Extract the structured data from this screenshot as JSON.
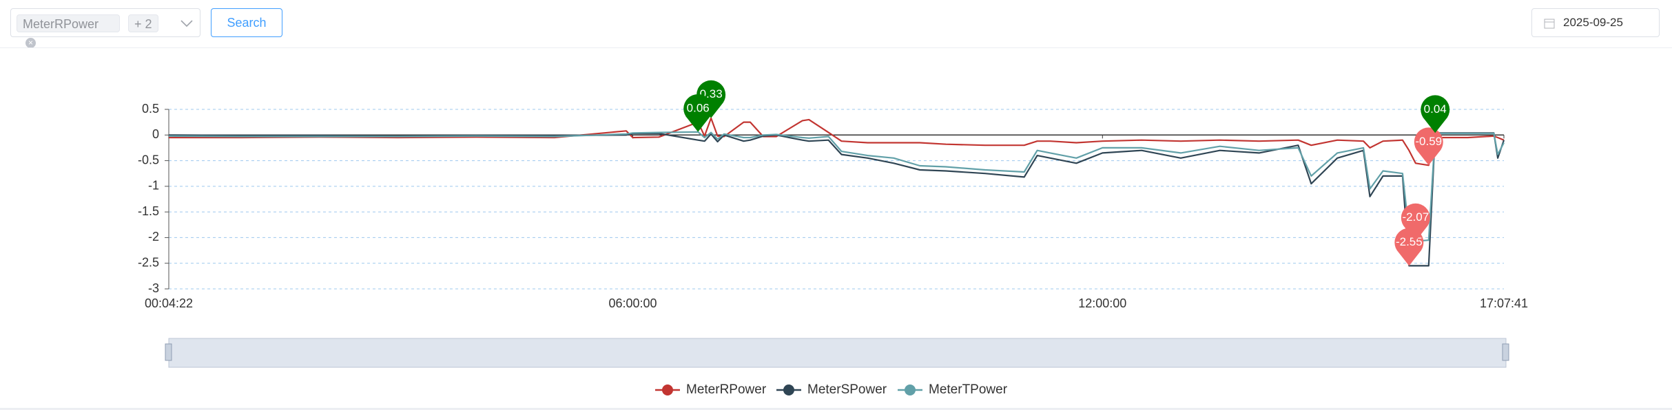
{
  "toolbar": {
    "select_tag": "MeterRPower",
    "more": "+ 2",
    "button": "Search",
    "date": "2025-09-25"
  },
  "chart_data": {
    "type": "line",
    "x": [
      "00:04:22",
      "01:00:00",
      "02:00:00",
      "03:00:00",
      "04:00:00",
      "05:00:00",
      "05:55:00",
      "06:00:00",
      "06:20:00",
      "06:50:00",
      "06:55:00",
      "07:00:00",
      "07:05:00",
      "07:10:00",
      "07:25:00",
      "07:30:00",
      "07:40:00",
      "07:50:00",
      "08:10:00",
      "08:15:00",
      "08:30:00",
      "08:40:00",
      "09:00:00",
      "09:20:00",
      "09:40:00",
      "10:00:00",
      "10:30:00",
      "11:00:00",
      "11:10:00",
      "11:20:00",
      "11:40:00",
      "12:00:00",
      "12:30:00",
      "13:00:00",
      "13:30:00",
      "14:00:00",
      "14:30:00",
      "14:40:00",
      "15:00:00",
      "15:20:00",
      "15:25:00",
      "15:35:00",
      "15:50:00",
      "15:55:00",
      "16:00:00",
      "16:10:00",
      "16:15:00",
      "16:40:00",
      "17:00:00",
      "17:03:00",
      "17:07:41"
    ],
    "series": [
      {
        "name": "MeterRPower",
        "color": "#c23531",
        "values": [
          -0.05,
          -0.05,
          -0.04,
          -0.05,
          -0.04,
          -0.05,
          0.08,
          -0.05,
          -0.04,
          0.25,
          -0.02,
          0.33,
          -0.02,
          -0.03,
          0.25,
          0.25,
          -0.03,
          -0.03,
          0.28,
          0.3,
          0.05,
          -0.12,
          -0.15,
          -0.15,
          -0.15,
          -0.18,
          -0.2,
          -0.2,
          -0.12,
          -0.12,
          -0.15,
          -0.12,
          -0.1,
          -0.12,
          -0.1,
          -0.12,
          -0.1,
          -0.2,
          -0.1,
          -0.12,
          -0.25,
          -0.12,
          -0.1,
          -0.3,
          -0.55,
          -0.59,
          -0.05,
          -0.05,
          -0.02,
          -0.05,
          -0.1
        ]
      },
      {
        "name": "MeterSPower",
        "color": "#2f4554",
        "values": [
          0,
          -0.01,
          -0.01,
          -0.02,
          -0.01,
          -0.01,
          0,
          0.03,
          0.03,
          -0.1,
          -0.12,
          0.02,
          -0.13,
          0,
          -0.12,
          -0.1,
          -0.02,
          0,
          -0.1,
          -0.12,
          -0.1,
          -0.38,
          -0.45,
          -0.55,
          -0.68,
          -0.7,
          -0.75,
          -0.82,
          -0.4,
          -0.45,
          -0.55,
          -0.35,
          -0.3,
          -0.45,
          -0.3,
          -0.35,
          -0.2,
          -0.95,
          -0.45,
          -0.3,
          -1.2,
          -0.8,
          -0.8,
          -2.55,
          -2.55,
          -2.55,
          0.04,
          0.04,
          0.04,
          -0.45,
          -0.1
        ]
      },
      {
        "name": "MeterTPower",
        "color": "#61a0a8",
        "values": [
          -0.02,
          -0.03,
          -0.03,
          -0.03,
          -0.02,
          -0.03,
          0.02,
          0.04,
          0.05,
          0.06,
          -0.05,
          0.05,
          -0.08,
          0.02,
          -0.05,
          -0.05,
          0,
          0.01,
          -0.05,
          -0.06,
          -0.03,
          -0.32,
          -0.4,
          -0.45,
          -0.6,
          -0.62,
          -0.68,
          -0.72,
          -0.3,
          -0.35,
          -0.45,
          -0.25,
          -0.25,
          -0.35,
          -0.22,
          -0.3,
          -0.25,
          -0.8,
          -0.35,
          -0.25,
          -1.05,
          -0.7,
          -0.75,
          -1.9,
          -2.07,
          -2.05,
          0.03,
          0.03,
          0.03,
          -0.38,
          -0.15
        ]
      }
    ],
    "xlim": [
      "00:04:22",
      "17:07:41"
    ],
    "xticks": [
      "00:04:22",
      "06:00:00",
      "12:00:00",
      "17:07:41"
    ],
    "ylim": [
      -3,
      0.5
    ],
    "yticks": [
      0.5,
      0,
      -0.5,
      -1,
      -1.5,
      -2,
      -2.5,
      -3
    ],
    "grid": true,
    "mark_points": [
      "max",
      "min"
    ],
    "max_color": "#008000",
    "min_color": "#f06a6a",
    "legend": "bottom"
  }
}
